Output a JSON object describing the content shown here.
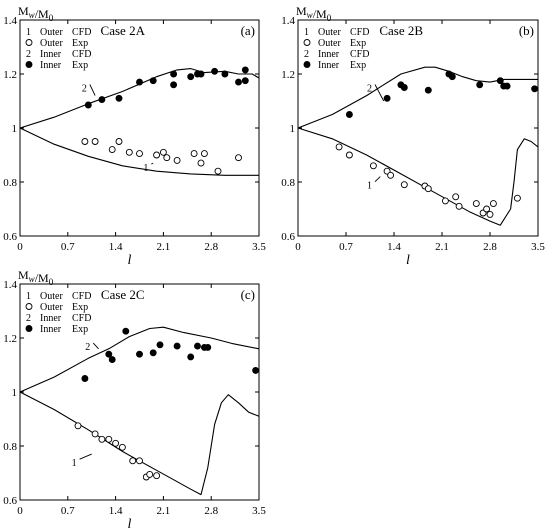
{
  "chart_data": [
    {
      "type": "line",
      "panel": "(a)",
      "case": "Case 2A",
      "ylabel": "M_w/M_0",
      "xlabel": "l",
      "xlim": [
        0,
        3.5
      ],
      "ylim": [
        0.6,
        1.4
      ],
      "xticks": [
        "0",
        "0.7",
        "1.4",
        "2.1",
        "2.8",
        "3.5"
      ],
      "yticks": [
        "0.6",
        "0.8",
        "1",
        "1.2",
        "1.4"
      ],
      "legend": [
        {
          "num": "1",
          "text": "Outer",
          "kind": "CFD"
        },
        {
          "num": "",
          "text": "Outer",
          "kind": "Exp"
        },
        {
          "num": "2",
          "text": "Inner",
          "kind": "CFD"
        },
        {
          "num": "",
          "text": "Inner",
          "kind": "Exp"
        }
      ],
      "series": [
        {
          "name": "1",
          "label_at": [
            1.85,
            0.855
          ],
          "label_anchor": [
            1.95,
            0.87
          ],
          "style": "line",
          "x": [
            0,
            0.5,
            1.0,
            1.5,
            2.0,
            2.5,
            3.0,
            3.5
          ],
          "y": [
            1.0,
            0.94,
            0.895,
            0.86,
            0.84,
            0.83,
            0.825,
            0.825
          ]
        },
        {
          "name": "",
          "style": "open",
          "x": [
            0.95,
            1.1,
            1.35,
            1.45,
            1.6,
            1.75,
            2.0,
            2.1,
            2.15,
            2.3,
            2.55,
            2.65,
            2.7,
            2.9,
            3.2
          ],
          "y": [
            0.95,
            0.95,
            0.92,
            0.95,
            0.91,
            0.905,
            0.9,
            0.91,
            0.89,
            0.88,
            0.905,
            0.87,
            0.905,
            0.84,
            0.89
          ]
        },
        {
          "name": "2",
          "label_at": [
            0.95,
            1.15
          ],
          "label_anchor": [
            1.1,
            1.12
          ],
          "style": "line",
          "x": [
            0,
            0.5,
            1.0,
            1.5,
            2.0,
            2.3,
            2.5,
            2.7,
            3.0,
            3.2,
            3.4,
            3.5
          ],
          "y": [
            1.0,
            1.04,
            1.09,
            1.135,
            1.19,
            1.215,
            1.22,
            1.205,
            1.21,
            1.2,
            1.2,
            1.185
          ]
        },
        {
          "name": "",
          "style": "filled",
          "x": [
            1.0,
            1.2,
            1.45,
            1.75,
            1.95,
            2.25,
            2.25,
            2.5,
            2.6,
            2.65,
            2.85,
            3.0,
            3.2,
            3.3,
            3.3
          ],
          "y": [
            1.085,
            1.105,
            1.11,
            1.17,
            1.175,
            1.2,
            1.16,
            1.19,
            1.2,
            1.2,
            1.21,
            1.2,
            1.17,
            1.215,
            1.175
          ]
        }
      ]
    },
    {
      "type": "line",
      "panel": "(b)",
      "case": "Case 2B",
      "ylabel": "M_w/M_0",
      "xlabel": "l",
      "xlim": [
        0,
        3.5
      ],
      "ylim": [
        0.6,
        1.4
      ],
      "xticks": [
        "0",
        "0.7",
        "1.4",
        "2.1",
        "2.8",
        "3.5"
      ],
      "yticks": [
        "0.6",
        "0.8",
        "1",
        "1.2",
        "1.4"
      ],
      "legend": [
        {
          "num": "1",
          "text": "Outer",
          "kind": "CFD"
        },
        {
          "num": "",
          "text": "Outer",
          "kind": "Exp"
        },
        {
          "num": "2",
          "text": "Inner",
          "kind": "CFD"
        },
        {
          "num": "",
          "text": "Inner",
          "kind": "Exp"
        }
      ],
      "series": [
        {
          "name": "1",
          "label_at": [
            1.05,
            0.79
          ],
          "label_anchor": [
            1.2,
            0.82
          ],
          "style": "line",
          "x": [
            0,
            0.5,
            1.0,
            1.5,
            2.0,
            2.5,
            2.8,
            2.95,
            3.1,
            3.15,
            3.2,
            3.3,
            3.4,
            3.5
          ],
          "y": [
            1.0,
            0.96,
            0.9,
            0.83,
            0.76,
            0.69,
            0.655,
            0.64,
            0.7,
            0.8,
            0.92,
            0.96,
            0.95,
            0.93
          ]
        },
        {
          "name": "",
          "style": "open",
          "x": [
            0.6,
            0.75,
            1.1,
            1.3,
            1.35,
            1.55,
            1.85,
            1.9,
            2.15,
            2.3,
            2.35,
            2.6,
            2.7,
            2.75,
            2.8,
            2.85,
            3.2
          ],
          "y": [
            0.93,
            0.9,
            0.86,
            0.84,
            0.825,
            0.79,
            0.785,
            0.775,
            0.73,
            0.745,
            0.71,
            0.72,
            0.685,
            0.7,
            0.68,
            0.72,
            0.74
          ]
        },
        {
          "name": "2",
          "label_at": [
            1.05,
            1.15
          ],
          "label_anchor": [
            1.25,
            1.1
          ],
          "style": "line",
          "x": [
            0,
            0.5,
            1.0,
            1.5,
            1.85,
            2.0,
            2.2,
            2.4,
            2.6,
            2.8,
            3.0,
            3.2,
            3.5
          ],
          "y": [
            1.0,
            1.05,
            1.12,
            1.2,
            1.225,
            1.225,
            1.21,
            1.19,
            1.175,
            1.17,
            1.18,
            1.18,
            1.18
          ]
        },
        {
          "name": "",
          "style": "filled",
          "x": [
            0.75,
            1.3,
            1.5,
            1.55,
            1.9,
            2.2,
            2.25,
            2.65,
            2.95,
            3.0,
            3.05,
            3.45
          ],
          "y": [
            1.05,
            1.11,
            1.16,
            1.15,
            1.14,
            1.2,
            1.19,
            1.16,
            1.175,
            1.155,
            1.155,
            1.145
          ]
        }
      ]
    },
    {
      "type": "line",
      "panel": "(c)",
      "case": "Case 2C",
      "ylabel": "M_w/M_0",
      "xlabel": "l",
      "xlim": [
        0,
        3.5
      ],
      "ylim": [
        0.6,
        1.4
      ],
      "xticks": [
        "0",
        "0.7",
        "1.4",
        "2.1",
        "2.8",
        "3.5"
      ],
      "yticks": [
        "0.6",
        "0.8",
        "1",
        "1.2",
        "1.4"
      ],
      "legend": [
        {
          "num": "1",
          "text": "Outer",
          "kind": "CFD"
        },
        {
          "num": "",
          "text": "Outer",
          "kind": "Exp"
        },
        {
          "num": "2",
          "text": "Inner",
          "kind": "CFD"
        },
        {
          "num": "",
          "text": "Inner",
          "kind": "Exp"
        }
      ],
      "series": [
        {
          "name": "1",
          "label_at": [
            0.8,
            0.74
          ],
          "label_anchor": [
            1.05,
            0.77
          ],
          "style": "line",
          "x": [
            0,
            0.5,
            1.0,
            1.5,
            2.0,
            2.5,
            2.65,
            2.75,
            2.85,
            2.95,
            3.05,
            3.2,
            3.35,
            3.5
          ],
          "y": [
            1.0,
            0.935,
            0.86,
            0.78,
            0.71,
            0.64,
            0.62,
            0.72,
            0.88,
            0.96,
            0.99,
            0.96,
            0.925,
            0.91
          ]
        },
        {
          "name": "",
          "style": "open",
          "x": [
            0.85,
            1.1,
            1.2,
            1.3,
            1.4,
            1.5,
            1.65,
            1.75,
            1.85,
            1.9,
            2.0
          ],
          "y": [
            0.875,
            0.845,
            0.825,
            0.825,
            0.81,
            0.795,
            0.745,
            0.745,
            0.685,
            0.695,
            0.69
          ]
        },
        {
          "name": "2",
          "label_at": [
            1.0,
            1.17
          ],
          "label_anchor": [
            1.15,
            1.16
          ],
          "style": "line",
          "x": [
            0,
            0.5,
            1.0,
            1.3,
            1.6,
            1.9,
            2.1,
            2.4,
            2.8,
            3.1,
            3.5
          ],
          "y": [
            1.0,
            1.055,
            1.125,
            1.16,
            1.205,
            1.235,
            1.24,
            1.22,
            1.2,
            1.18,
            1.16
          ]
        },
        {
          "name": "",
          "style": "filled",
          "x": [
            0.95,
            1.3,
            1.35,
            1.55,
            1.75,
            1.95,
            2.05,
            2.3,
            2.5,
            2.6,
            2.7,
            2.75,
            3.45
          ],
          "y": [
            1.05,
            1.14,
            1.12,
            1.225,
            1.14,
            1.145,
            1.175,
            1.17,
            1.13,
            1.17,
            1.165,
            1.165,
            1.08
          ]
        }
      ]
    }
  ]
}
